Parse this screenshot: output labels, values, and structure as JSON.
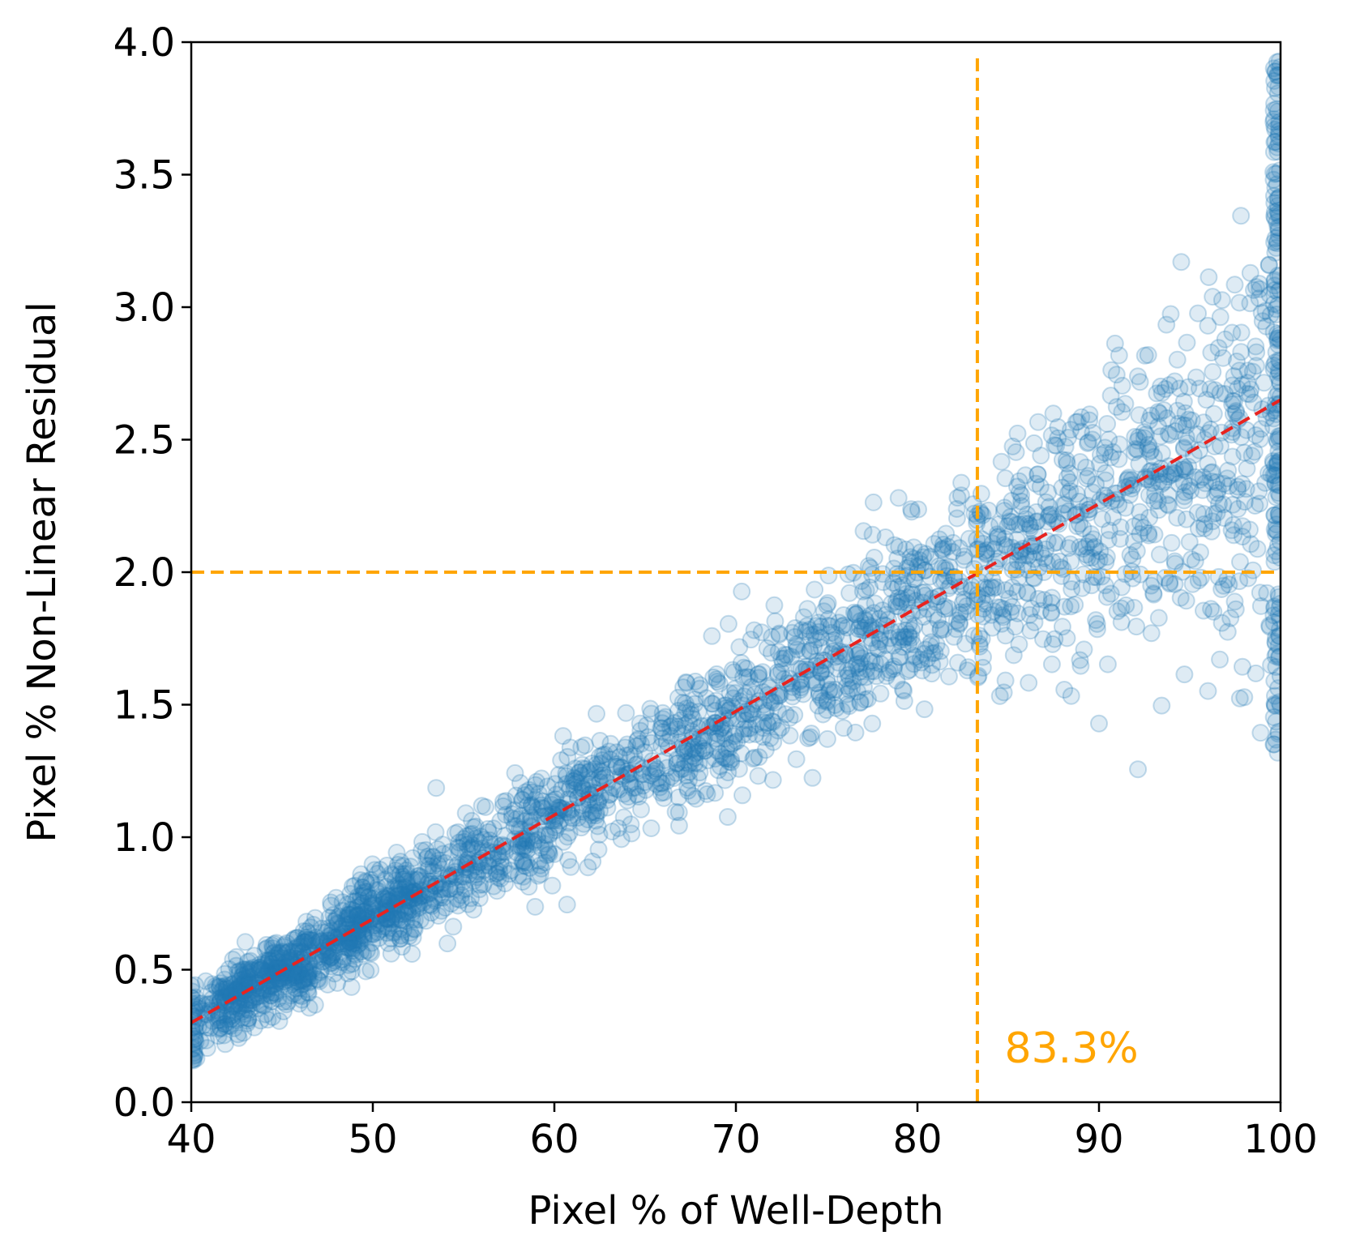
{
  "chart_data": {
    "type": "scatter",
    "title": "",
    "xlabel": "Pixel % of Well-Depth",
    "ylabel": "Pixel % Non-Linear Residual",
    "xlim": [
      40,
      100
    ],
    "ylim": [
      0.0,
      4.0
    ],
    "xticks": [
      40,
      50,
      60,
      70,
      80,
      90,
      100
    ],
    "xtick_labels": [
      "40",
      "50",
      "60",
      "70",
      "80",
      "90",
      "100"
    ],
    "yticks": [
      0.0,
      0.5,
      1.0,
      1.5,
      2.0,
      2.5,
      3.0,
      3.5,
      4.0
    ],
    "ytick_labels": [
      "0.0",
      "0.5",
      "1.0",
      "1.5",
      "2.0",
      "2.5",
      "3.0",
      "3.5",
      "4.0"
    ],
    "grid": false,
    "series": [
      {
        "name": "pixels",
        "kind": "scatter",
        "marker": "hollow-circle-filled-alpha",
        "color": "#1f77b4",
        "alpha": 0.15,
        "generation": {
          "seed": 7,
          "count": 2600,
          "x_range": [
            40,
            100
          ],
          "trend_intercept": 0.3,
          "trend_slope": 0.03917,
          "notes": "Points scatter around the linear trend; spread grows with x; clusters near x=43-46 and x=48-52; vertical strip at x=100 from ~1.3 to ~3.95."
        }
      },
      {
        "name": "linear fit",
        "kind": "line",
        "style": "dashed",
        "color": "#e8231f",
        "x": [
          40,
          100
        ],
        "y": [
          0.3,
          2.65
        ]
      },
      {
        "name": "threshold y",
        "kind": "hline",
        "style": "dashed",
        "color": "#ffa500",
        "y": 2.0,
        "x": [
          40,
          100
        ]
      },
      {
        "name": "threshold x",
        "kind": "vline",
        "style": "dashed",
        "color": "#ffa500",
        "x": 83.3,
        "y": [
          0.0,
          3.95
        ]
      }
    ],
    "annotations": [
      {
        "text": "83.3%",
        "x": 84.8,
        "y": 0.15,
        "color": "#ffa500"
      }
    ]
  }
}
